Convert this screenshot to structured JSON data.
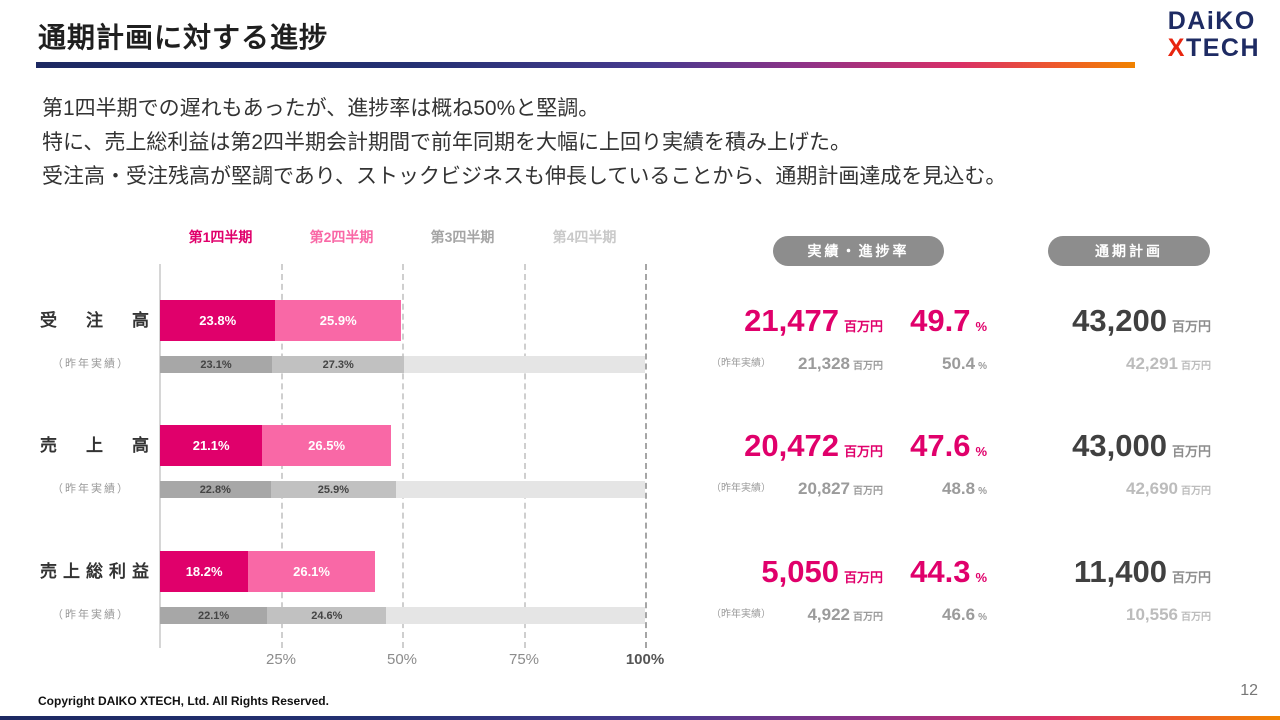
{
  "header": {
    "title": "通期計画に対する進捗"
  },
  "logo": {
    "line1": "DAiKO",
    "line2_x": "X",
    "line2_rest": "TECH"
  },
  "summary": [
    "第1四半期での遅れもあったが、進捗率は概ね50%と堅調。",
    "特に、売上総利益は第2四半期会計期間で前年同期を大幅に上回り実績を積み上げた。",
    "受注高・受注残高が堅調であり、ストックビジネスも伸長していることから、通期計画達成を見込む。"
  ],
  "columns": {
    "actual_header": "実績・進捗率",
    "plan_header": "通期計画"
  },
  "footer": {
    "copyright": "Copyright DAIKO XTECH, Ltd. All Rights Reserved.",
    "page_number": "12"
  },
  "chart_data": {
    "type": "bar",
    "orientation": "horizontal-stacked",
    "xlim": [
      0,
      100
    ],
    "x_ticks": [
      "25%",
      "50%",
      "75%",
      "100%"
    ],
    "grid": "dashed-vertical",
    "legend_position": "top",
    "legend": [
      {
        "label": "第1四半期",
        "color": "#e0006b"
      },
      {
        "label": "第2四半期",
        "color": "#f968a6"
      },
      {
        "label": "第3四半期",
        "color": "#a5a5a5"
      },
      {
        "label": "第4四半期",
        "color": "#c9c9c9"
      }
    ],
    "prev_row_label": "（昨年実績）",
    "unit": "百万円",
    "percent_symbol": "%",
    "colors": {
      "accent": "#e0006b",
      "q1": "#e0006b",
      "q2": "#f968a6",
      "prev_q1": "#a7a7a7",
      "prev_q2": "#c1c1c1",
      "track": "#e5e5e5",
      "plan_text": "#404040",
      "prev_text": "#9b9b9b",
      "prev_plan_text": "#bcbcbc",
      "badge_bg": "#8d8d8d"
    },
    "rows": [
      {
        "label": "受　注　高",
        "current": {
          "segments": [
            23.8,
            25.9
          ],
          "segment_labels": [
            "23.8%",
            "25.9%"
          ],
          "actual": "21,477",
          "progress": "49.7",
          "plan": "43,200"
        },
        "previous": {
          "segments": [
            23.1,
            27.3
          ],
          "segment_labels": [
            "23.1%",
            "27.3%"
          ],
          "actual": "21,328",
          "progress": "50.4",
          "plan": "42,291"
        }
      },
      {
        "label": "売　上　高",
        "current": {
          "segments": [
            21.1,
            26.5
          ],
          "segment_labels": [
            "21.1%",
            "26.5%"
          ],
          "actual": "20,472",
          "progress": "47.6",
          "plan": "43,000"
        },
        "previous": {
          "segments": [
            22.8,
            25.9
          ],
          "segment_labels": [
            "22.8%",
            "25.9%"
          ],
          "actual": "20,827",
          "progress": "48.8",
          "plan": "42,690"
        }
      },
      {
        "label": "売上総利益",
        "current": {
          "segments": [
            18.2,
            26.1
          ],
          "segment_labels": [
            "18.2%",
            "26.1%"
          ],
          "actual": "5,050",
          "progress": "44.3",
          "plan": "11,400"
        },
        "previous": {
          "segments": [
            22.1,
            24.6
          ],
          "segment_labels": [
            "22.1%",
            "24.6%"
          ],
          "actual": "4,922",
          "progress": "46.6",
          "plan": "10,556"
        }
      }
    ]
  }
}
